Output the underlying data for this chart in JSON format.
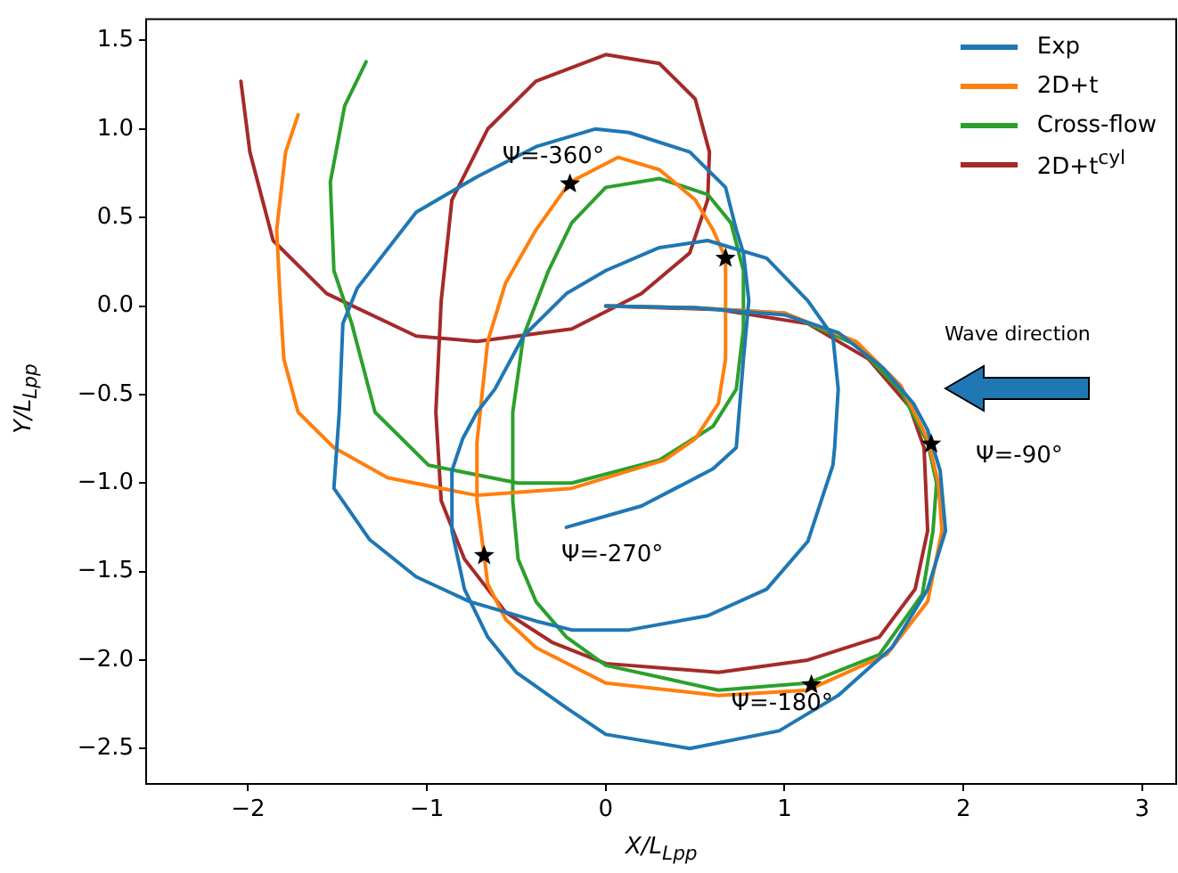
{
  "chart_data": {
    "type": "line",
    "xlabel": "X/L$_{Lpp}$",
    "ylabel": "Y/L$_{Lpp}$",
    "xlim": [
      -2.57,
      3.19
    ],
    "ylim": [
      -2.7,
      1.62
    ],
    "xticks": [
      {
        "value": -2,
        "label": "−2"
      },
      {
        "value": -1,
        "label": "−1"
      },
      0,
      1,
      2,
      3
    ],
    "yticks": [
      {
        "value": -2.5,
        "label": "−2.5"
      },
      {
        "value": -2,
        "label": "−2.0"
      },
      {
        "value": -1.5,
        "label": "−1.5"
      },
      {
        "value": -1,
        "label": "−1.0"
      },
      {
        "value": -0.5,
        "label": "−0.5"
      },
      {
        "value": 0,
        "label": "0.0"
      },
      {
        "value": 0.5,
        "label": "0.5"
      },
      {
        "value": 1,
        "label": "1.0"
      },
      {
        "value": 1.5,
        "label": "1.5"
      }
    ],
    "grid": false,
    "legend": "top right",
    "series": [
      {
        "name": "Exp",
        "color": "#1f77b4",
        "x": [
          0,
          0.5,
          1.0,
          1.3,
          1.55,
          1.72,
          1.8,
          1.87,
          1.9,
          1.8,
          1.6,
          1.3,
          0.97,
          0.47,
          0,
          -0.22,
          -0.5,
          -0.66,
          -0.79,
          -0.86,
          -0.86,
          -0.8,
          -0.72,
          -0.62,
          -0.46,
          -0.22,
          0,
          0.3,
          0.57,
          0.9,
          1.13,
          1.27,
          1.3,
          1.28,
          1.27,
          1.13,
          0.9,
          0.57,
          0.13,
          -0.19,
          -0.39,
          -0.76,
          -1.06,
          -1.32,
          -1.52,
          -1.49,
          -1.47,
          -1.39,
          -1.06,
          -0.72,
          -0.39,
          -0.06,
          0.13,
          0.47,
          0.67,
          0.73,
          0.77,
          0.8,
          0.77,
          0.73,
          0.6,
          0.2,
          -0.22
        ],
        "values": [
          0,
          -0.01,
          -0.05,
          -0.15,
          -0.35,
          -0.55,
          -0.7,
          -0.93,
          -1.27,
          -1.6,
          -1.93,
          -2.2,
          -2.4,
          -2.5,
          -2.42,
          -2.27,
          -2.07,
          -1.87,
          -1.6,
          -1.27,
          -0.93,
          -0.75,
          -0.6,
          -0.47,
          -0.17,
          0.07,
          0.2,
          0.33,
          0.37,
          0.27,
          0.03,
          -0.17,
          -0.47,
          -0.8,
          -0.9,
          -1.33,
          -1.6,
          -1.75,
          -1.83,
          -1.83,
          -1.78,
          -1.67,
          -1.53,
          -1.32,
          -1.03,
          -0.6,
          -0.1,
          0.1,
          0.53,
          0.73,
          0.9,
          1.0,
          0.98,
          0.87,
          0.67,
          0.43,
          0.3,
          0.03,
          -0.3,
          -0.8,
          -0.92,
          -1.13,
          -1.25
        ]
      },
      {
        "name": "2D+t",
        "color": "#ff7f0e",
        "x": [
          0,
          0.5,
          1.0,
          1.4,
          1.65,
          1.8,
          1.86,
          1.88,
          1.8,
          1.57,
          1.13,
          0.63,
          0,
          -0.39,
          -0.56,
          -0.66,
          -0.68,
          -0.72,
          -0.72,
          -0.66,
          -0.56,
          -0.39,
          -0.2,
          0.07,
          0.3,
          0.5,
          0.6,
          0.67,
          0.67,
          0.63,
          0.5,
          0.33,
          -0.19,
          -0.72,
          -1.22,
          -1.52,
          -1.72,
          -1.8,
          -1.82,
          -1.84,
          -1.79,
          -1.72
        ],
        "values": [
          0,
          -0.01,
          -0.04,
          -0.2,
          -0.45,
          -0.75,
          -1.0,
          -1.27,
          -1.67,
          -1.97,
          -2.17,
          -2.2,
          -2.13,
          -1.93,
          -1.77,
          -1.57,
          -1.41,
          -1.1,
          -0.77,
          -0.2,
          0.13,
          0.43,
          0.7,
          0.84,
          0.77,
          0.6,
          0.43,
          0.27,
          -0.3,
          -0.55,
          -0.75,
          -0.87,
          -1.03,
          -1.07,
          -0.97,
          -0.8,
          -0.6,
          -0.3,
          0.03,
          0.43,
          0.87,
          1.08
        ]
      },
      {
        "name": "Cross-flow",
        "color": "#2ca02c",
        "x": [
          0,
          0.5,
          1.0,
          1.4,
          1.65,
          1.8,
          1.85,
          1.83,
          1.77,
          1.53,
          1.13,
          0.63,
          0,
          -0.22,
          -0.39,
          -0.49,
          -0.52,
          -0.52,
          -0.46,
          -0.32,
          -0.19,
          0,
          0.3,
          0.57,
          0.7,
          0.77,
          0.77,
          0.73,
          0.6,
          0.3,
          -0.19,
          -0.49,
          -0.99,
          -1.29,
          -1.42,
          -1.52,
          -1.54,
          -1.46,
          -1.34
        ],
        "values": [
          0,
          -0.01,
          -0.04,
          -0.22,
          -0.48,
          -0.77,
          -1.0,
          -1.27,
          -1.63,
          -1.97,
          -2.13,
          -2.17,
          -2.03,
          -1.87,
          -1.67,
          -1.43,
          -1.1,
          -0.6,
          -0.17,
          0.2,
          0.47,
          0.67,
          0.72,
          0.63,
          0.47,
          0.2,
          -0.13,
          -0.47,
          -0.68,
          -0.87,
          -1.0,
          -1.0,
          -0.9,
          -0.6,
          -0.1,
          0.2,
          0.7,
          1.13,
          1.38
        ]
      },
      {
        "name": "2D+t$^{cyl}$",
        "color": "#a52a2a",
        "x": [
          0,
          0.63,
          1.13,
          1.47,
          1.7,
          1.78,
          1.8,
          1.73,
          1.53,
          1.13,
          0.63,
          0,
          -0.3,
          -0.56,
          -0.79,
          -0.92,
          -0.95,
          -0.92,
          -0.86,
          -0.66,
          -0.39,
          0,
          0.3,
          0.5,
          0.58,
          0.57,
          0.47,
          0.2,
          -0.19,
          -0.72,
          -1.06,
          -1.56,
          -1.86,
          -1.99,
          -2.04
        ],
        "values": [
          0,
          -0.02,
          -0.1,
          -0.3,
          -0.57,
          -0.8,
          -1.27,
          -1.6,
          -1.87,
          -2.0,
          -2.07,
          -2.02,
          -1.9,
          -1.73,
          -1.43,
          -1.1,
          -0.6,
          0.03,
          0.6,
          1.0,
          1.27,
          1.42,
          1.37,
          1.17,
          0.87,
          0.6,
          0.3,
          0.07,
          -0.13,
          -0.2,
          -0.17,
          0.07,
          0.37,
          0.87,
          1.27
        ]
      },
      {
        "type": "scatter",
        "marker": "star",
        "color": "#000000",
        "x": [
          -0.2,
          0.67,
          1.82,
          1.15,
          -0.68
        ],
        "values": [
          0.69,
          0.27,
          -0.78,
          -2.14,
          -1.41
        ]
      }
    ],
    "annotations": [
      {
        "text": "Ψ=-360°",
        "x": -0.2,
        "y": 0.69
      },
      {
        "text": "Ψ=-90°",
        "x": 1.82,
        "y": -0.78
      },
      "Ψ=-270°",
      {
        "text": "Ψ=-180°",
        "x": 1.15,
        "y": -2.14
      },
      "Wave direction"
    ]
  }
}
